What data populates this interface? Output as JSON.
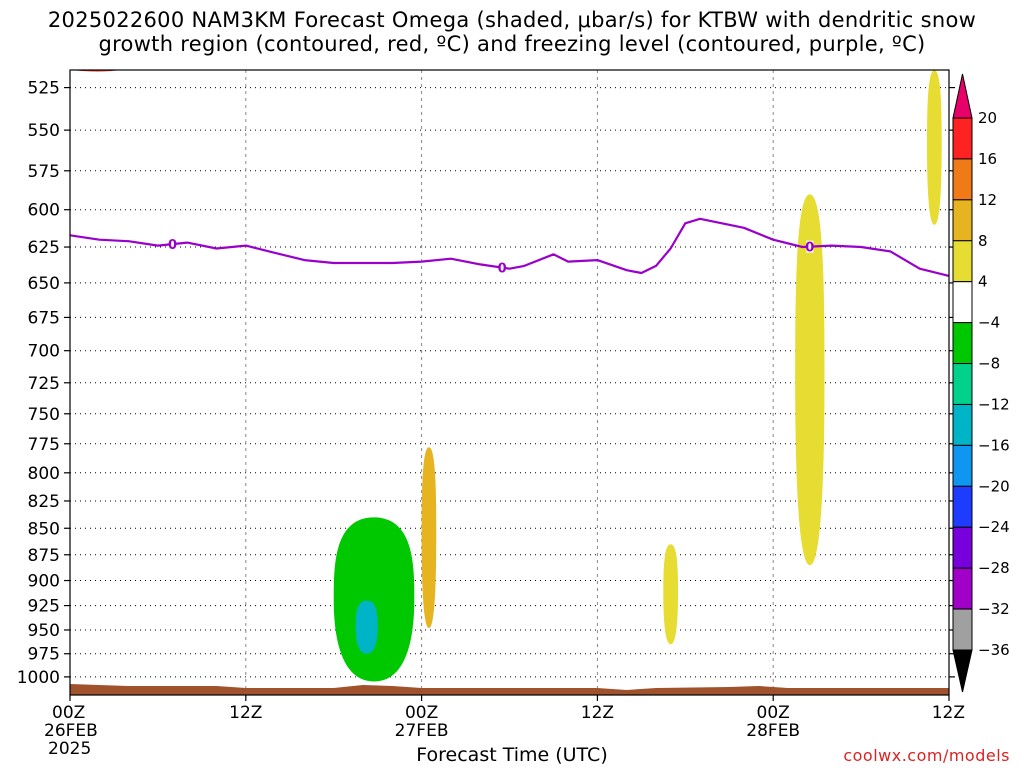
{
  "chart_data": {
    "type": "heatmap",
    "title": "2025022600 NAM3KM Forecast Omega (shaded, μbar/s) for KTBW with dendritic snow",
    "subtitle": "growth region (contoured, red, ºC) and freezing level (contoured, purple, ºC)",
    "xlabel": "Forecast Time (UTC)",
    "ylabel": "",
    "x_range_hours": [
      0,
      60
    ],
    "x_ticks": [
      {
        "hour": 0,
        "label": "00Z",
        "date": "26FEB",
        "year": "2025"
      },
      {
        "hour": 12,
        "label": "12Z",
        "date": "",
        "year": ""
      },
      {
        "hour": 24,
        "label": "00Z",
        "date": "27FEB",
        "year": ""
      },
      {
        "hour": 36,
        "label": "12Z",
        "date": "",
        "year": ""
      },
      {
        "hour": 48,
        "label": "00Z",
        "date": "28FEB",
        "year": ""
      },
      {
        "hour": 60,
        "label": "12Z",
        "date": "",
        "year": ""
      }
    ],
    "y_scale": "log-pressure (reversed)",
    "y_range_hpa": [
      1020,
      515
    ],
    "y_ticks": [
      525,
      550,
      575,
      600,
      625,
      650,
      675,
      700,
      725,
      750,
      775,
      800,
      825,
      850,
      875,
      900,
      925,
      950,
      975,
      1000
    ],
    "grid": true,
    "colorbar": {
      "labels": [
        "20",
        "16",
        "12",
        "8",
        "4",
        "−4",
        "−8",
        "−12",
        "−16",
        "−20",
        "−24",
        "−28",
        "−32",
        "−36"
      ],
      "bins": [
        {
          "range": [
            20,
            999
          ],
          "color": "#e8006a"
        },
        {
          "range": [
            16,
            20
          ],
          "color": "#ff2222"
        },
        {
          "range": [
            12,
            16
          ],
          "color": "#f07a18"
        },
        {
          "range": [
            8,
            12
          ],
          "color": "#e6b420"
        },
        {
          "range": [
            4,
            8
          ],
          "color": "#e6dc32"
        },
        {
          "range": [
            -4,
            4
          ],
          "color": "#ffffff"
        },
        {
          "range": [
            -8,
            -4
          ],
          "color": "#00c800"
        },
        {
          "range": [
            -12,
            -8
          ],
          "color": "#00d28c"
        },
        {
          "range": [
            -16,
            -12
          ],
          "color": "#00b4c8"
        },
        {
          "range": [
            -20,
            -16
          ],
          "color": "#0f96f0"
        },
        {
          "range": [
            -24,
            -20
          ],
          "color": "#1e3cff"
        },
        {
          "range": [
            -28,
            -24
          ],
          "color": "#7800dc"
        },
        {
          "range": [
            -32,
            -28
          ],
          "color": "#a000c8"
        },
        {
          "range": [
            -36,
            -32
          ],
          "color": "#a0a0a0"
        },
        {
          "range": [
            -999,
            -36
          ],
          "color": "#000000"
        }
      ]
    },
    "freezing_level": {
      "name": "0°C",
      "color": "#9900cc",
      "label": "0",
      "label_at_hours": [
        7,
        29.5,
        50.5
      ],
      "hours": [
        0,
        2,
        4,
        6,
        7,
        8,
        10,
        12,
        14,
        16,
        18,
        20,
        22,
        24,
        26,
        28,
        30,
        31,
        33,
        34,
        36,
        38,
        39,
        40,
        41,
        42,
        43,
        44,
        46,
        48,
        50,
        52,
        54,
        56,
        58,
        60
      ],
      "pressure_hpa": [
        617,
        620,
        621,
        624,
        623,
        622,
        626,
        624,
        629,
        634,
        636,
        636,
        636,
        635,
        633,
        637,
        640,
        638,
        630,
        635,
        634,
        641,
        643,
        638,
        626,
        609,
        606,
        608,
        612,
        620,
        625,
        624,
        625,
        628,
        640,
        645
      ]
    },
    "dgz_region": {
      "color": "#dd2222",
      "note": "red contour near 515 hPa at start"
    },
    "omega_regions": [
      {
        "value_range": [
          -12,
          -4
        ],
        "hours": [
          18,
          23.5
        ],
        "pressure_hpa": [
          840,
          1005
        ]
      },
      {
        "value_range": [
          -16,
          -12
        ],
        "hours": [
          19.5,
          21
        ],
        "pressure_hpa": [
          920,
          975
        ]
      },
      {
        "value_range": [
          4,
          12
        ],
        "hours": [
          24,
          25
        ],
        "pressure_hpa": [
          778,
          948
        ]
      },
      {
        "value_range": [
          4,
          8
        ],
        "hours": [
          40.5,
          41.5
        ],
        "pressure_hpa": [
          865,
          965
        ]
      },
      {
        "value_range": [
          4,
          8
        ],
        "hours": [
          49.5,
          51.5
        ],
        "pressure_hpa": [
          590,
          885
        ]
      },
      {
        "value_range": [
          4,
          8
        ],
        "hours": [
          58.5,
          59.5
        ],
        "pressure_hpa": [
          515,
          610
        ]
      }
    ],
    "terrain": {
      "color": "#a0522d"
    }
  },
  "credit": "coolwx.com/models"
}
